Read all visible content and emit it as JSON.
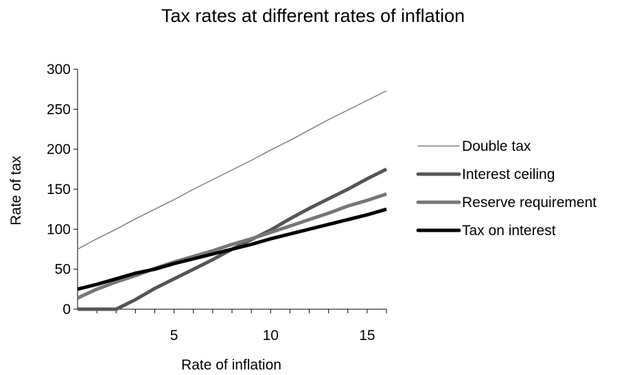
{
  "chart_data": {
    "type": "line",
    "title": "Tax rates at different rates of inflation",
    "xlabel": "Rate of inflation",
    "ylabel": "Rate of tax",
    "xlim": [
      0,
      16
    ],
    "ylim": [
      0,
      300
    ],
    "xticks": [
      5,
      10,
      15
    ],
    "yticks": [
      0,
      50,
      100,
      150,
      200,
      250,
      300
    ],
    "grid": false,
    "legend_position": "right",
    "x": [
      0,
      1,
      2,
      3,
      4,
      5,
      6,
      7,
      8,
      9,
      10,
      11,
      12,
      13,
      14,
      15,
      16
    ],
    "series": [
      {
        "name": "Double tax",
        "color": "#808080",
        "width": "thin",
        "values": [
          75,
          88,
          100,
          113,
          125,
          137,
          150,
          162,
          174,
          186,
          199,
          211,
          224,
          237,
          249,
          261,
          273
        ]
      },
      {
        "name": "Interest ceiling",
        "color": "#555555",
        "width": "thick",
        "values": [
          0,
          0,
          0,
          12,
          26,
          38,
          50,
          62,
          75,
          87,
          99,
          113,
          126,
          138,
          150,
          163,
          175
        ]
      },
      {
        "name": "Reserve requirement",
        "color": "#777777",
        "width": "thick",
        "values": [
          14,
          25,
          34,
          42,
          51,
          59,
          66,
          73,
          81,
          88,
          96,
          104,
          112,
          120,
          129,
          136,
          144
        ]
      },
      {
        "name": "Tax on interest",
        "color": "#000000",
        "width": "thick",
        "values": [
          25,
          31,
          38,
          45,
          50,
          57,
          63,
          69,
          75,
          81,
          88,
          94,
          100,
          106,
          112,
          118,
          125
        ]
      }
    ]
  }
}
